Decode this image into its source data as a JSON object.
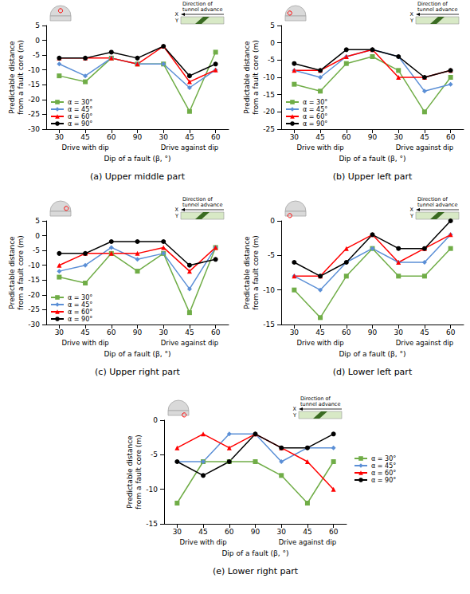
{
  "chart_data": [
    {
      "type": "line",
      "caption": "(a) Upper middle part",
      "x_label": "Dip of a fault (β, °)",
      "y_label": "Predictable distance from a fault core (m)",
      "categories": [
        30,
        45,
        60,
        90,
        30,
        45,
        60
      ],
      "x_groups": [
        {
          "label": "Drive with dip",
          "span": [
            0,
            2
          ]
        },
        {
          "label": "Drive against dip",
          "span": [
            4,
            6
          ]
        }
      ],
      "inset": {
        "label": "Direction of tunnel advance",
        "x": "X",
        "y": "Y"
      },
      "ylim": [
        -30,
        5
      ],
      "yticks": [
        -30,
        -25,
        -20,
        -15,
        -10,
        -5,
        0,
        5
      ],
      "grid": false,
      "legend": "lower left",
      "series": [
        {
          "name": "α = 30°",
          "color": "#70ad47",
          "marker": "square",
          "values": [
            -12,
            -14,
            -6,
            -8,
            -8,
            -24,
            -4
          ]
        },
        {
          "name": "α = 45°",
          "color": "#5b8fd6",
          "marker": "diamond",
          "values": [
            -8,
            -12,
            -6,
            -8,
            -8,
            -16,
            -10
          ]
        },
        {
          "name": "α = 60°",
          "color": "#ff0000",
          "marker": "triangle",
          "values": [
            -6,
            -6,
            -6,
            -8,
            -2,
            -14,
            -10
          ]
        },
        {
          "name": "α = 90°",
          "color": "#000000",
          "marker": "circle",
          "values": [
            -6,
            -6,
            -4,
            -6,
            -2,
            -12,
            -8
          ]
        }
      ]
    },
    {
      "type": "line",
      "caption": "(b) Upper left part",
      "x_label": "Dip of a fault (β, °)",
      "y_label": "Predictable distance from a fault core (m)",
      "categories": [
        30,
        45,
        60,
        90,
        30,
        45,
        60
      ],
      "x_groups": [
        {
          "label": "Drive with dip",
          "span": [
            0,
            2
          ]
        },
        {
          "label": "Drive against dip",
          "span": [
            4,
            6
          ]
        }
      ],
      "inset": {
        "label": "Direction of tunnel advance",
        "x": "X",
        "y": "Y"
      },
      "ylim": [
        -25,
        5
      ],
      "yticks": [
        -25,
        -20,
        -15,
        -10,
        -5,
        0,
        5
      ],
      "grid": false,
      "legend": "lower left",
      "series": [
        {
          "name": "α = 30°",
          "color": "#70ad47",
          "marker": "square",
          "values": [
            -12,
            -14,
            -6,
            -4,
            -8,
            -20,
            -10
          ]
        },
        {
          "name": "α = 45°",
          "color": "#5b8fd6",
          "marker": "diamond",
          "values": [
            -8,
            -10,
            -4,
            -2,
            -4,
            -14,
            -12
          ]
        },
        {
          "name": "α = 60°",
          "color": "#ff0000",
          "marker": "triangle",
          "values": [
            -8,
            -8,
            -4,
            -2,
            -10,
            -10,
            -8
          ]
        },
        {
          "name": "α = 90°",
          "color": "#000000",
          "marker": "circle",
          "values": [
            -6,
            -8,
            -2,
            -2,
            -4,
            -10,
            -8
          ]
        }
      ]
    },
    {
      "type": "line",
      "caption": "(c) Upper right part",
      "x_label": "Dip of a fault (β, °)",
      "y_label": "Predictable distance from a fault core (m)",
      "categories": [
        30,
        45,
        60,
        90,
        30,
        45,
        60
      ],
      "x_groups": [
        {
          "label": "Drive with dip",
          "span": [
            0,
            2
          ]
        },
        {
          "label": "Drive against dip",
          "span": [
            4,
            6
          ]
        }
      ],
      "inset": {
        "label": "Direction of tunnel advance",
        "x": "X",
        "y": "Y"
      },
      "ylim": [
        -30,
        5
      ],
      "yticks": [
        -30,
        -25,
        -20,
        -15,
        -10,
        -5,
        0,
        5
      ],
      "grid": false,
      "legend": "lower left",
      "series": [
        {
          "name": "α = 30°",
          "color": "#70ad47",
          "marker": "square",
          "values": [
            -14,
            -16,
            -6,
            -12,
            -6,
            -26,
            -4
          ]
        },
        {
          "name": "α = 45°",
          "color": "#5b8fd6",
          "marker": "diamond",
          "values": [
            -12,
            -10,
            -4,
            -8,
            -6,
            -18,
            -4
          ]
        },
        {
          "name": "α = 60°",
          "color": "#ff0000",
          "marker": "triangle",
          "values": [
            -10,
            -6,
            -6,
            -6,
            -4,
            -12,
            -4
          ]
        },
        {
          "name": "α = 90°",
          "color": "#000000",
          "marker": "circle",
          "values": [
            -6,
            -6,
            -2,
            -2,
            -2,
            -10,
            -8
          ]
        }
      ]
    },
    {
      "type": "line",
      "caption": "(d) Lower left part",
      "x_label": "Dip of a fault (β, °)",
      "y_label": "Predictable distance from a fault core (m)",
      "categories": [
        30,
        45,
        60,
        90,
        30,
        45,
        60
      ],
      "x_groups": [
        {
          "label": "Drive with dip",
          "span": [
            0,
            2
          ]
        },
        {
          "label": "Drive against dip",
          "span": [
            4,
            6
          ]
        }
      ],
      "inset": {
        "label": "Direction of tunnel advance",
        "x": "X",
        "y": "Y"
      },
      "ylim": [
        -15,
        0
      ],
      "yticks": [
        -15,
        -10,
        -5,
        0
      ],
      "grid": false,
      "series": [
        {
          "name": "α = 30°",
          "color": "#70ad47",
          "marker": "square",
          "values": [
            -10,
            -14,
            -8,
            -4,
            -8,
            -8,
            -4
          ]
        },
        {
          "name": "α = 45°",
          "color": "#5b8fd6",
          "marker": "diamond",
          "values": [
            -8,
            -10,
            -6,
            -4,
            -6,
            -6,
            -2
          ]
        },
        {
          "name": "α = 60°",
          "color": "#ff0000",
          "marker": "triangle",
          "values": [
            -8,
            -8,
            -4,
            -2,
            -6,
            -4,
            -2
          ]
        },
        {
          "name": "α = 90°",
          "color": "#000000",
          "marker": "circle",
          "values": [
            -6,
            -8,
            -6,
            -2,
            -4,
            -4,
            0
          ]
        }
      ]
    },
    {
      "type": "line",
      "caption": "(e) Lower right part",
      "x_label": "Dip of a fault (β, °)",
      "y_label": "Predictable distance from a fault core (m)",
      "categories": [
        30,
        45,
        60,
        90,
        30,
        45,
        60
      ],
      "x_groups": [
        {
          "label": "Drive with dip",
          "span": [
            0,
            2
          ]
        },
        {
          "label": "Drive against dip",
          "span": [
            4,
            6
          ]
        }
      ],
      "inset": {
        "label": "Direction of tunnel advance",
        "x": "X",
        "y": "Y"
      },
      "ylim": [
        -15,
        0
      ],
      "yticks": [
        -15,
        -10,
        -5,
        0
      ],
      "grid": false,
      "legend": "right",
      "series": [
        {
          "name": "α = 30°",
          "color": "#70ad47",
          "marker": "square",
          "values": [
            -12,
            -6,
            -6,
            -6,
            -8,
            -12,
            -6
          ]
        },
        {
          "name": "α = 45°",
          "color": "#5b8fd6",
          "marker": "diamond",
          "values": [
            -6,
            -6,
            -2,
            -2,
            -6,
            -4,
            -4
          ]
        },
        {
          "name": "α = 60°",
          "color": "#ff0000",
          "marker": "triangle",
          "values": [
            -4,
            -2,
            -4,
            -2,
            -4,
            -6,
            -10
          ]
        },
        {
          "name": "α = 90°",
          "color": "#000000",
          "marker": "circle",
          "values": [
            -6,
            -8,
            -6,
            -2,
            -4,
            -4,
            -2
          ]
        }
      ]
    }
  ]
}
